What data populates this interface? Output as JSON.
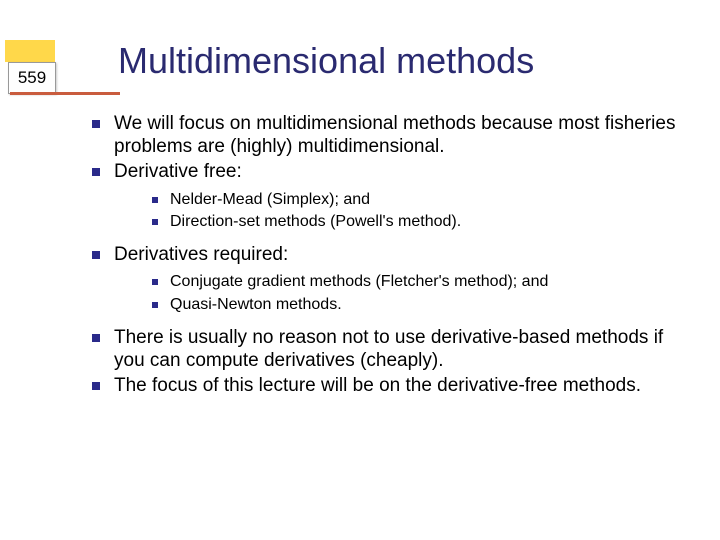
{
  "page_number": "559",
  "title": "Multidimensional methods",
  "colors": {
    "title_color": "#2a2a70",
    "bullet_color": "#2a2a8a",
    "accent_yellow": "#ffd84a",
    "accent_red": "#c95c3e",
    "background": "#ffffff"
  },
  "typography": {
    "title_fontsize": 36,
    "body_fontsize": 19,
    "sub_fontsize": 16,
    "font_family": "Verdana"
  },
  "bullets": {
    "b1": "We will focus on multidimensional methods because most fisheries problems are (highly) multidimensional.",
    "b2": "Derivative free:",
    "b2_sub": {
      "s1": "Nelder-Mead (Simplex); and",
      "s2": "Direction-set methods (Powell's method)."
    },
    "b3": "Derivatives required:",
    "b3_sub": {
      "s1": "Conjugate gradient methods (Fletcher's method); and",
      "s2": "Quasi-Newton methods."
    },
    "b4": "There is usually no reason not to use derivative-based methods if you can compute derivatives (cheaply).",
    "b5": "The focus of this lecture will be on the derivative-free methods."
  }
}
